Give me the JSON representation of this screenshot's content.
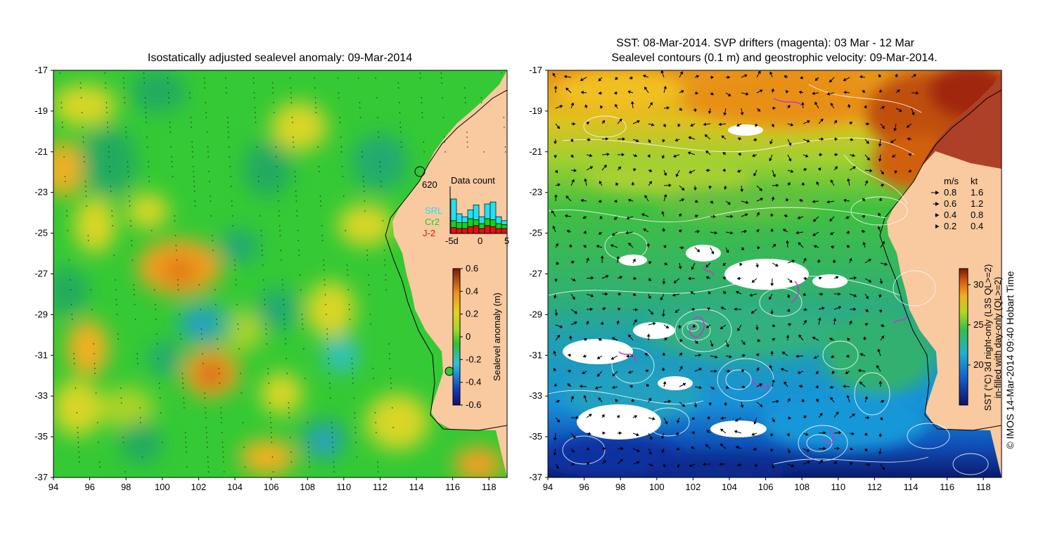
{
  "left_panel": {
    "title": "Isostatically adjusted sealevel anomaly: 09-Mar-2014",
    "station_label": "620",
    "colorbar": {
      "label": "Sealevel anomaly (m)",
      "ticks": [
        "0.6",
        "0.4",
        "0.2",
        "0",
        "-0.2",
        "-0.4",
        "-0.6"
      ],
      "range": [
        -0.6,
        0.6
      ]
    },
    "data_count": {
      "title": "Data count",
      "sources": [
        {
          "name": "SRL",
          "color": "#22e0f0"
        },
        {
          "name": "Cr2",
          "color": "#19d119"
        },
        {
          "name": "J-2",
          "color": "#e51010"
        }
      ],
      "xticks": [
        "-5d",
        "0",
        "5"
      ]
    }
  },
  "right_panel": {
    "title_line1": "SST: 08-Mar-2014. SVP drifters (magenta): 03 Mar - 12 Mar",
    "title_line2": "Sealevel contours (0.1 m) and geostrophic velocity: 09-Mar-2014.",
    "velocity_legend": {
      "header_ms": "m/s",
      "header_kt": "kt",
      "rows": [
        {
          "ms": "0.8",
          "kt": "1.6"
        },
        {
          "ms": "0.6",
          "kt": "1.2"
        },
        {
          "ms": "0.4",
          "kt": "0.8"
        },
        {
          "ms": "0.2",
          "kt": "0.4"
        }
      ]
    },
    "colorbar": {
      "label_line1": "SST (°C) 3d night-only (L3S QL>=2)",
      "label_line2": "in-filled with day-only (QL>=2)",
      "ticks": [
        "30",
        "25",
        "20"
      ],
      "range": [
        15,
        32
      ]
    },
    "credit": "© IMOS 14-Mar-2014 09:40 Hobart Time"
  },
  "axes": {
    "lon_ticks": [
      "94",
      "96",
      "98",
      "100",
      "102",
      "104",
      "106",
      "108",
      "110",
      "112",
      "114",
      "116",
      "118"
    ],
    "lat_ticks": [
      "-17",
      "-19",
      "-21",
      "-23",
      "-25",
      "-27",
      "-29",
      "-31",
      "-33",
      "-35",
      "-37"
    ],
    "lon_range": [
      94,
      119
    ],
    "lat_range": [
      -37,
      -17
    ]
  },
  "colors": {
    "land": "#f9c9a0",
    "sla_green": "#35c935",
    "sla_yellow": "#d9d626",
    "sla_orange": "#f0a020",
    "sla_cyan": "#33c8c8",
    "sst_red": "#a02810",
    "sst_blue": "#0a2aa0",
    "contour": "#ffffff",
    "drifter": "#cc33cc"
  }
}
